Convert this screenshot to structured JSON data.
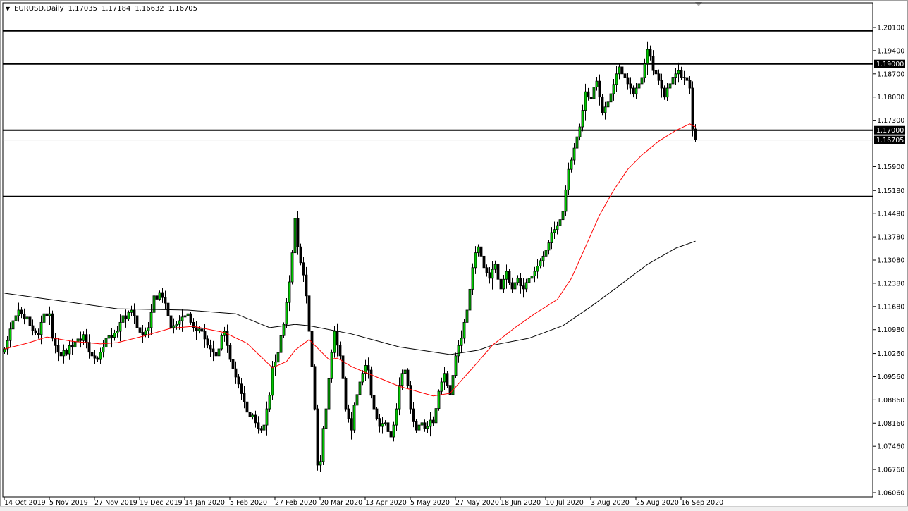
{
  "header": {
    "symbol": "EURUSD,Daily",
    "open": "1.17035",
    "high": "1.17184",
    "low": "1.16632",
    "close": "1.16705",
    "menu_icon": "triangle-down-icon"
  },
  "chart_data": {
    "type": "candlestick",
    "symbol": "EURUSD",
    "timeframe": "Daily",
    "ylim": [
      1.0606,
      1.201
    ],
    "grid": false,
    "colors": {
      "bull": "#00c800",
      "bear": "#000000",
      "ma_fast": "#ff0000",
      "ma_slow": "#000000",
      "current_price_line": "#c0c0c0"
    },
    "y_ticks": [
      "1.20100",
      "1.19400",
      "1.18700",
      "1.18000",
      "1.17300",
      "1.15900",
      "1.15180",
      "1.14480",
      "1.13780",
      "1.13080",
      "1.12380",
      "1.11680",
      "1.10980",
      "1.10260",
      "1.09560",
      "1.08860",
      "1.08160",
      "1.07460",
      "1.06760",
      "1.06060"
    ],
    "x_ticks": [
      {
        "bar": 0,
        "label": "14 Oct 2019"
      },
      {
        "bar": 16,
        "label": "5 Nov 2019"
      },
      {
        "bar": 32,
        "label": "27 Nov 2019"
      },
      {
        "bar": 48,
        "label": "19 Dec 2019"
      },
      {
        "bar": 64,
        "label": "14 Jan 2020"
      },
      {
        "bar": 80,
        "label": "5 Feb 2020"
      },
      {
        "bar": 96,
        "label": "27 Feb 2020"
      },
      {
        "bar": 112,
        "label": "20 Mar 2020"
      },
      {
        "bar": 128,
        "label": "13 Apr 2020"
      },
      {
        "bar": 144,
        "label": "5 May 2020"
      },
      {
        "bar": 160,
        "label": "27 May 2020"
      },
      {
        "bar": 176,
        "label": "18 Jun 2020"
      },
      {
        "bar": 192,
        "label": "10 Jul 2020"
      },
      {
        "bar": 208,
        "label": "3 Aug 2020"
      },
      {
        "bar": 224,
        "label": "25 Aug 2020"
      },
      {
        "bar": 240,
        "label": "16 Sep 2020"
      }
    ],
    "first_open": 1.103,
    "closes": [
      1.104,
      1.1065,
      1.11,
      1.1125,
      1.114,
      1.1157,
      1.1145,
      1.113,
      1.1136,
      1.111,
      1.1095,
      1.1088,
      1.1083,
      1.112,
      1.1146,
      1.114,
      1.1146,
      1.1072,
      1.105,
      1.103,
      1.1019,
      1.1035,
      1.1025,
      1.105,
      1.1045,
      1.1061,
      1.107,
      1.1065,
      1.1083,
      1.106,
      1.103,
      1.1019,
      1.1012,
      1.1008,
      1.103,
      1.1045,
      1.1072,
      1.108,
      1.1075,
      1.1088,
      1.1093,
      1.112,
      1.114,
      1.113,
      1.115,
      1.1157,
      1.114,
      1.1104,
      1.109,
      1.1083,
      1.1095,
      1.1104,
      1.115,
      1.12,
      1.119,
      1.121,
      1.1195,
      1.1178,
      1.114,
      1.1104,
      1.111,
      1.1114,
      1.1125,
      1.1136,
      1.114,
      1.1146,
      1.112,
      1.1104,
      1.1095,
      1.11,
      1.1093,
      1.107,
      1.1051,
      1.104,
      1.103,
      1.1019,
      1.104,
      1.108,
      1.1093,
      1.105,
      1.1008,
      1.098,
      1.0955,
      1.0934,
      1.0905,
      1.088,
      1.0849,
      1.0835,
      1.084,
      1.0817,
      1.08,
      1.0795,
      1.081,
      1.0859,
      1.09,
      1.0987,
      1.1,
      1.1029,
      1.108,
      1.1114,
      1.118,
      1.1242,
      1.133,
      1.1434,
      1.1348,
      1.13,
      1.1263,
      1.12,
      1.1093,
      1.0987,
      1.0859,
      1.0689,
      1.07,
      1.08,
      1.0859,
      1.095,
      1.1029,
      1.1093,
      1.1051,
      1.1019,
      1.095,
      1.0859,
      1.083,
      1.0795,
      1.087,
      1.0902,
      1.094,
      1.0966,
      1.099,
      1.0976,
      1.09,
      1.0859,
      1.083,
      1.0806,
      1.0815,
      1.0817,
      1.079,
      1.0774,
      1.081,
      1.0859,
      1.093,
      1.0966,
      1.0976,
      1.093,
      1.0859,
      1.082,
      1.0795,
      1.081,
      1.0817,
      1.08,
      1.0806,
      1.0825,
      1.0817,
      1.086,
      1.0912,
      1.094,
      1.0966,
      1.093,
      1.0902,
      1.096,
      1.1019,
      1.105,
      1.1072,
      1.112,
      1.1157,
      1.122,
      1.1285,
      1.133,
      1.1348,
      1.132,
      1.1285,
      1.127,
      1.1253,
      1.128,
      1.1295,
      1.125,
      1.1221,
      1.125,
      1.1274,
      1.124,
      1.1221,
      1.124,
      1.1253,
      1.123,
      1.1221,
      1.124,
      1.1253,
      1.126,
      1.1274,
      1.129,
      1.1306,
      1.132,
      1.1338,
      1.136,
      1.1391,
      1.14,
      1.1412,
      1.143,
      1.1455,
      1.152,
      1.1582,
      1.161,
      1.1646,
      1.168,
      1.171,
      1.176,
      1.1816,
      1.18,
      1.1795,
      1.183,
      1.1848,
      1.18,
      1.1753,
      1.177,
      1.1785,
      1.181,
      1.1838,
      1.187,
      1.1891,
      1.187,
      1.1859,
      1.184,
      1.1827,
      1.181,
      1.1827,
      1.184,
      1.1859,
      1.19,
      1.1944,
      1.1923,
      1.188,
      1.187,
      1.185,
      1.1827,
      1.18,
      1.1827,
      1.184,
      1.186,
      1.187,
      1.188,
      1.186,
      1.1859,
      1.185,
      1.1827,
      1.17035,
      1.16705
    ],
    "last_bar": {
      "open": 1.17035,
      "high": 1.17184,
      "low": 1.16632,
      "close": 1.16705
    },
    "ma_fast": [
      [
        0,
        1.104
      ],
      [
        8,
        1.1057
      ],
      [
        15,
        1.1076
      ],
      [
        24,
        1.1063
      ],
      [
        34,
        1.1055
      ],
      [
        40,
        1.1059
      ],
      [
        49,
        1.1078
      ],
      [
        59,
        1.1102
      ],
      [
        67,
        1.1108
      ],
      [
        78,
        1.1089
      ],
      [
        86,
        1.1057
      ],
      [
        95,
        1.0983
      ],
      [
        100,
        1.1002
      ],
      [
        103,
        1.1036
      ],
      [
        108,
        1.1068
      ],
      [
        115,
        1.1008
      ],
      [
        118,
        1.1012
      ],
      [
        123,
        1.0987
      ],
      [
        127,
        1.0972
      ],
      [
        140,
        1.0927
      ],
      [
        152,
        1.0898
      ],
      [
        158,
        1.0906
      ],
      [
        168,
        1.1002
      ],
      [
        173,
        1.1051
      ],
      [
        181,
        1.1104
      ],
      [
        188,
        1.1146
      ],
      [
        196,
        1.1189
      ],
      [
        201,
        1.1253
      ],
      [
        206,
        1.1348
      ],
      [
        211,
        1.1444
      ],
      [
        216,
        1.1519
      ],
      [
        221,
        1.1582
      ],
      [
        226,
        1.1625
      ],
      [
        232,
        1.1667
      ],
      [
        238,
        1.1699
      ],
      [
        243,
        1.1719
      ],
      [
        245,
        1.171
      ]
    ],
    "ma_slow": [
      [
        0,
        1.1208
      ],
      [
        40,
        1.1161
      ],
      [
        65,
        1.1157
      ],
      [
        82,
        1.1146
      ],
      [
        94,
        1.1104
      ],
      [
        103,
        1.1114
      ],
      [
        108,
        1.111
      ],
      [
        123,
        1.1085
      ],
      [
        140,
        1.1046
      ],
      [
        158,
        1.1023
      ],
      [
        168,
        1.1036
      ],
      [
        173,
        1.1051
      ],
      [
        186,
        1.1072
      ],
      [
        198,
        1.111
      ],
      [
        208,
        1.1168
      ],
      [
        218,
        1.1231
      ],
      [
        228,
        1.1295
      ],
      [
        238,
        1.1344
      ],
      [
        245,
        1.1365
      ]
    ],
    "horizontal_lines": [
      {
        "price": 1.2,
        "label": ""
      },
      {
        "price": 1.19,
        "label": "1.19000"
      },
      {
        "price": 1.17,
        "label": "1.17000"
      },
      {
        "price": 1.15,
        "label": ""
      }
    ],
    "current_price": {
      "price": 1.16705,
      "label": "1.16705"
    }
  }
}
